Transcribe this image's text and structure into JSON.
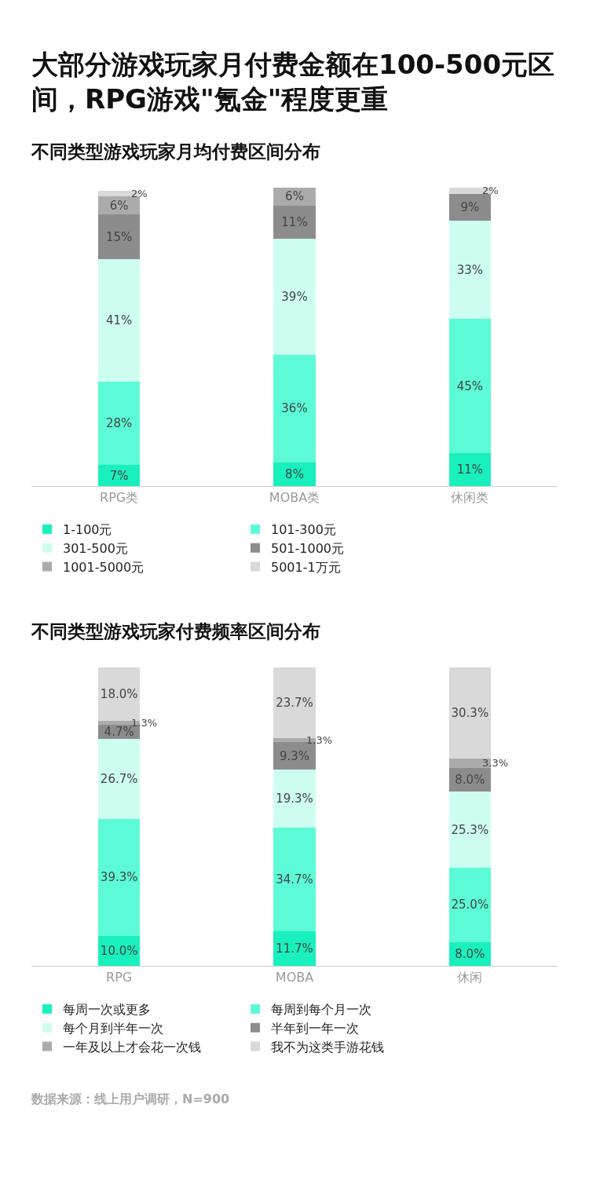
{
  "chart_data": [
    {
      "type": "bar",
      "title": "大部分游戏玩家月付费金额在100-500元区间，RPG游戏\"氪金\"程度更重",
      "subtitle": "不同类型游戏玩家月均付费区间分布",
      "categories": [
        "RPG类",
        "MOBA类",
        "休闲类"
      ],
      "stacked": true,
      "legend": "bottom",
      "grid": false,
      "tick_labels": "x",
      "series": [
        {
          "name": "1-100元",
          "color": "#19f0bd",
          "values": [
            7,
            8,
            11
          ],
          "value_labels": [
            "7%",
            "8%",
            "11%"
          ]
        },
        {
          "name": "101-300元",
          "color": "#5cfad6",
          "values": [
            28,
            36,
            45
          ],
          "value_labels": [
            "28%",
            "36%",
            "45%"
          ]
        },
        {
          "name": "301-500元",
          "color": "#cdfdf1",
          "values": [
            41,
            39,
            33
          ],
          "value_labels": [
            "41%",
            "39%",
            "33%"
          ]
        },
        {
          "name": "501-1000元",
          "color": "#8c8c8c",
          "values": [
            15,
            11,
            9
          ],
          "value_labels": [
            "15%",
            "11%",
            "9%"
          ]
        },
        {
          "name": "1001-5000元",
          "color": "#ababab",
          "values": [
            6,
            6,
            null
          ],
          "value_labels": [
            "6%",
            "6%",
            null
          ]
        },
        {
          "name": "5001-1万元",
          "color": "#d9d9d9",
          "values": [
            2,
            null,
            2
          ],
          "value_labels": [
            "2%",
            null,
            "2%"
          ]
        }
      ]
    },
    {
      "type": "bar",
      "title": "不同类型游戏玩家付费频率区间分布",
      "categories": [
        "RPG",
        "MOBA",
        "休闲"
      ],
      "stacked": true,
      "legend": "bottom",
      "grid": false,
      "tick_labels": "x",
      "annotations": [
        "数据来源：线上用户调研，N=900"
      ],
      "series": [
        {
          "name": "每周一次或更多",
          "color": "#19f0bd",
          "values": [
            10.0,
            11.7,
            8.0
          ],
          "value_labels": [
            "10.0%",
            "11.7%",
            "8.0%"
          ]
        },
        {
          "name": "每周到每个月一次",
          "color": "#5cfad6",
          "values": [
            39.3,
            34.7,
            25.0
          ],
          "value_labels": [
            "39.3%",
            "34.7%",
            "25.0%"
          ]
        },
        {
          "name": "每个月到半年一次",
          "color": "#cdfdf1",
          "values": [
            26.7,
            19.3,
            25.3
          ],
          "value_labels": [
            "26.7%",
            "19.3%",
            "25.3%"
          ]
        },
        {
          "name": "半年到一年一次",
          "color": "#8c8c8c",
          "values": [
            4.7,
            9.3,
            8.0
          ],
          "value_labels": [
            "4.7%",
            "9.3%",
            "8.0%"
          ]
        },
        {
          "name": "一年及以上才会花一次钱",
          "color": "#ababab",
          "values": [
            1.3,
            1.3,
            3.3
          ],
          "value_labels": [
            "1.3%",
            "1.3%",
            "3.3%"
          ]
        },
        {
          "name": "我不为这类手游花钱",
          "color": "#d9d9d9",
          "values": [
            18.0,
            23.7,
            30.3
          ],
          "value_labels": [
            "18.0%",
            "23.7%",
            "30.3%"
          ]
        }
      ]
    }
  ]
}
